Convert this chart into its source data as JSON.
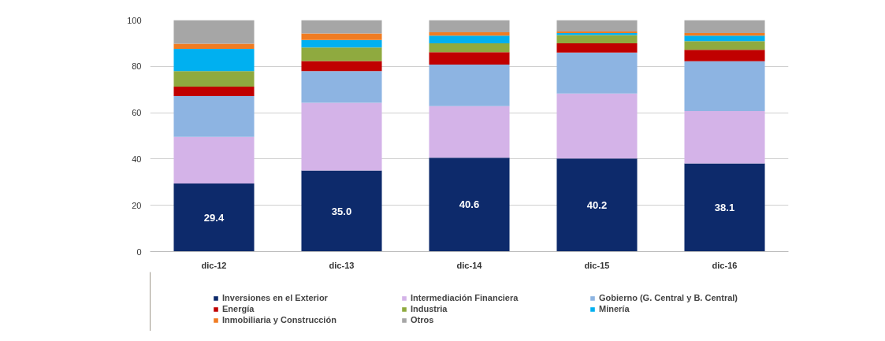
{
  "chart_data": {
    "type": "bar",
    "stacked": true,
    "categories": [
      "dic-12",
      "dic-13",
      "dic-14",
      "dic-15",
      "dic-16"
    ],
    "ylim": [
      0,
      100
    ],
    "yticks": [
      0,
      20,
      40,
      60,
      80,
      100
    ],
    "grid": "y",
    "legend": "bottom",
    "series": [
      {
        "name": "Inversiones en el Exterior",
        "color": "#0d2a6b",
        "values": [
          29.4,
          35.0,
          40.6,
          40.2,
          38.1
        ],
        "value_labels": [
          "29.4",
          "35.0",
          "40.6",
          "40.2",
          "38.1"
        ]
      },
      {
        "name": "Intermediación Financiera",
        "color": "#d4b3e8",
        "values": [
          20.2,
          29.3,
          22.2,
          28.1,
          22.6
        ]
      },
      {
        "name": "Gobierno (G. Central y B. Central)",
        "color": "#8db4e2",
        "values": [
          17.6,
          13.7,
          18.0,
          17.7,
          21.5
        ]
      },
      {
        "name": "Energía",
        "color": "#c00000",
        "values": [
          4.1,
          4.3,
          5.3,
          4.0,
          5.0
        ]
      },
      {
        "name": "Industria",
        "color": "#8faa3f",
        "values": [
          6.7,
          5.9,
          3.9,
          3.5,
          3.7
        ]
      },
      {
        "name": "Minería",
        "color": "#00b0f0",
        "values": [
          9.6,
          3.2,
          3.3,
          0.9,
          2.4
        ]
      },
      {
        "name": "Inmobiliaria y Construcción",
        "color": "#f07c22",
        "values": [
          2.2,
          2.8,
          1.4,
          0.7,
          1.1
        ]
      },
      {
        "name": "Otros",
        "color": "#a6a6a6",
        "values": [
          10.2,
          5.8,
          5.3,
          4.9,
          5.6
        ]
      }
    ]
  }
}
